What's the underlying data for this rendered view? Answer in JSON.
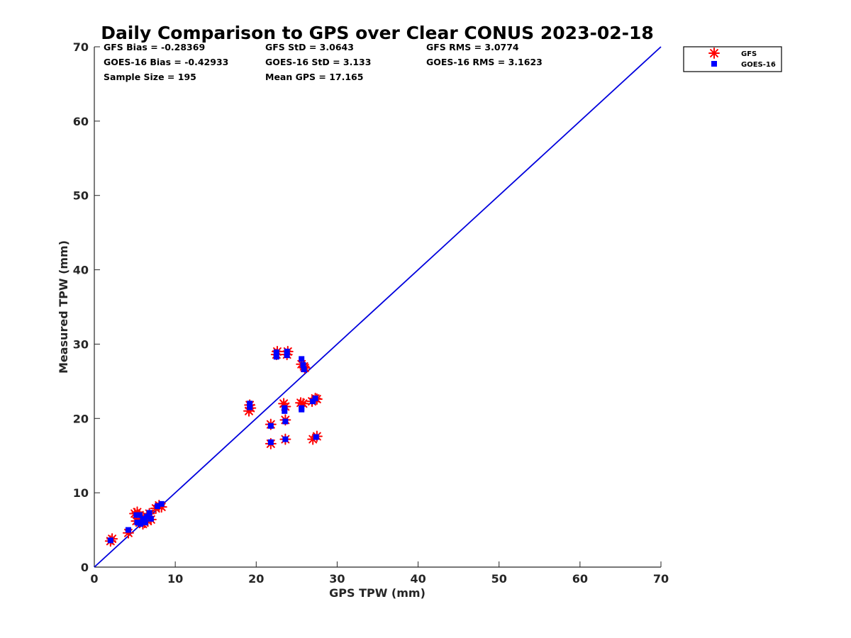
{
  "chart_data": {
    "type": "scatter",
    "title": "Daily Comparison to GPS over Clear CONUS 2023-02-18",
    "xlabel": "GPS TPW (mm)",
    "ylabel": "Measured TPW (mm)",
    "xlim": [
      0,
      70
    ],
    "ylim": [
      0,
      70
    ],
    "xticks": [
      0,
      10,
      20,
      30,
      40,
      50,
      60,
      70
    ],
    "yticks": [
      0,
      10,
      20,
      30,
      40,
      50,
      60,
      70
    ],
    "reference_line": {
      "name": "1:1 line",
      "x": [
        0,
        70
      ],
      "y": [
        0,
        70
      ],
      "color": "#0000dd"
    },
    "stats": [
      [
        "GFS Bias = -0.28369",
        "GFS StD = 3.0643",
        "GFS RMS = 3.0774"
      ],
      [
        "GOES-16 Bias = -0.42933",
        "GOES-16 StD = 3.133",
        "GOES-16 RMS = 3.1623"
      ],
      [
        "Sample Size = 195",
        "Mean GPS = 17.165",
        ""
      ]
    ],
    "legend_position": "outside-top-right",
    "series": [
      {
        "name": "GFS",
        "marker": "asterisk",
        "color": "#ff0000",
        "points": [
          [
            2.0,
            3.5
          ],
          [
            2.2,
            3.8
          ],
          [
            4.2,
            4.6
          ],
          [
            5.0,
            7.2
          ],
          [
            5.3,
            7.4
          ],
          [
            5.6,
            7.0
          ],
          [
            5.2,
            6.2
          ],
          [
            5.6,
            6.0
          ],
          [
            5.9,
            6.5
          ],
          [
            6.2,
            6.0
          ],
          [
            6.5,
            6.8
          ],
          [
            6.8,
            7.2
          ],
          [
            7.0,
            6.4
          ],
          [
            6.6,
            6.2
          ],
          [
            6.0,
            5.8
          ],
          [
            7.6,
            7.9
          ],
          [
            8.0,
            8.3
          ],
          [
            8.3,
            8.1
          ],
          [
            19.1,
            21.0
          ],
          [
            19.3,
            21.4
          ],
          [
            19.2,
            21.8
          ],
          [
            21.8,
            19.2
          ],
          [
            21.8,
            16.6
          ],
          [
            22.5,
            28.6
          ],
          [
            22.6,
            29.0
          ],
          [
            23.8,
            28.6
          ],
          [
            23.9,
            29.0
          ],
          [
            23.4,
            22.0
          ],
          [
            23.6,
            21.6
          ],
          [
            23.6,
            19.8
          ],
          [
            23.6,
            17.2
          ],
          [
            25.5,
            22.1
          ],
          [
            25.8,
            22.0
          ],
          [
            25.6,
            27.3
          ],
          [
            25.9,
            27.0
          ],
          [
            26.0,
            26.8
          ],
          [
            26.9,
            22.3
          ],
          [
            27.3,
            22.7
          ],
          [
            27.5,
            22.6
          ],
          [
            27.0,
            17.2
          ],
          [
            27.5,
            17.6
          ]
        ]
      },
      {
        "name": "GOES-16",
        "marker": "square",
        "color": "#0000ff",
        "points": [
          [
            2.0,
            3.6
          ],
          [
            4.2,
            5.0
          ],
          [
            5.2,
            7.0
          ],
          [
            5.6,
            7.0
          ],
          [
            5.3,
            6.0
          ],
          [
            5.7,
            5.8
          ],
          [
            6.0,
            6.3
          ],
          [
            6.3,
            6.0
          ],
          [
            6.5,
            6.8
          ],
          [
            6.8,
            7.3
          ],
          [
            7.0,
            6.5
          ],
          [
            6.2,
            6.5
          ],
          [
            7.8,
            8.2
          ],
          [
            8.3,
            8.5
          ],
          [
            19.2,
            21.5
          ],
          [
            19.2,
            22.0
          ],
          [
            21.8,
            19.0
          ],
          [
            21.8,
            16.8
          ],
          [
            22.5,
            28.3
          ],
          [
            22.5,
            28.9
          ],
          [
            23.8,
            28.5
          ],
          [
            23.8,
            29.0
          ],
          [
            23.5,
            21.4
          ],
          [
            23.5,
            21.0
          ],
          [
            23.6,
            19.6
          ],
          [
            23.6,
            17.2
          ],
          [
            25.6,
            21.4
          ],
          [
            25.6,
            21.2
          ],
          [
            25.6,
            28.0
          ],
          [
            25.8,
            27.2
          ],
          [
            25.9,
            26.6
          ],
          [
            27.0,
            22.3
          ],
          [
            27.3,
            22.7
          ],
          [
            27.4,
            17.5
          ]
        ]
      }
    ]
  }
}
